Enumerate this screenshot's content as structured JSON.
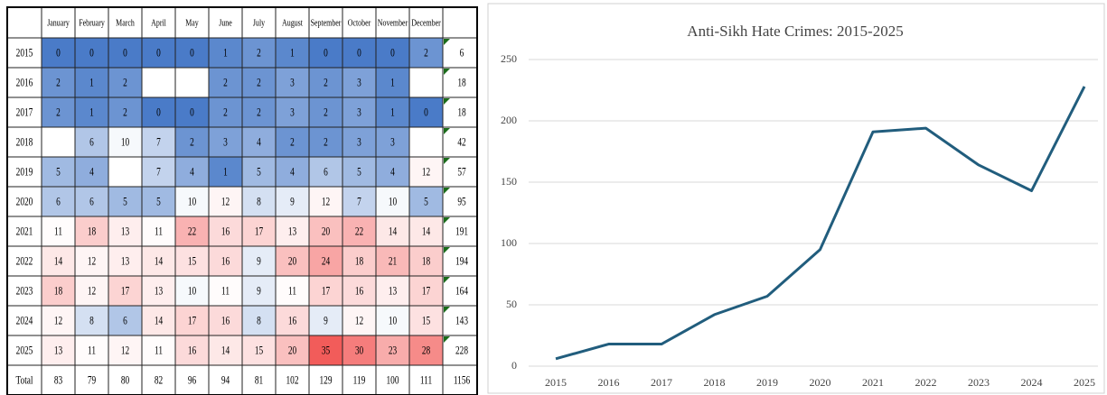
{
  "table": {
    "columns": [
      "January",
      "February",
      "March",
      "April",
      "May",
      "June",
      "July",
      "August",
      "September",
      "October",
      "November",
      "December"
    ],
    "rows": [
      {
        "label": "2015",
        "values": [
          0,
          0,
          0,
          0,
          0,
          1,
          2,
          1,
          0,
          0,
          0,
          2
        ],
        "total": 6
      },
      {
        "label": "2016",
        "values": [
          2,
          1,
          2,
          null,
          null,
          2,
          2,
          3,
          2,
          3,
          1,
          null
        ],
        "total": 18
      },
      {
        "label": "2017",
        "values": [
          2,
          1,
          2,
          0,
          0,
          2,
          2,
          3,
          2,
          3,
          1,
          0
        ],
        "total": 18
      },
      {
        "label": "2018",
        "values": [
          null,
          6,
          10,
          7,
          2,
          3,
          4,
          2,
          2,
          3,
          3,
          null
        ],
        "total": 42
      },
      {
        "label": "2019",
        "values": [
          5,
          4,
          null,
          7,
          4,
          1,
          5,
          4,
          6,
          5,
          4,
          12
        ],
        "total": 57
      },
      {
        "label": "2020",
        "values": [
          6,
          6,
          5,
          5,
          10,
          12,
          8,
          9,
          12,
          7,
          10,
          5
        ],
        "total": 95
      },
      {
        "label": "2021",
        "values": [
          11,
          18,
          13,
          11,
          22,
          16,
          17,
          13,
          20,
          22,
          14,
          14
        ],
        "total": 191
      },
      {
        "label": "2022",
        "values": [
          14,
          12,
          13,
          14,
          15,
          16,
          9,
          20,
          24,
          18,
          21,
          18
        ],
        "total": 194
      },
      {
        "label": "2023",
        "values": [
          18,
          12,
          17,
          13,
          10,
          11,
          9,
          11,
          17,
          16,
          13,
          17
        ],
        "total": 164
      },
      {
        "label": "2024",
        "values": [
          12,
          8,
          6,
          14,
          17,
          16,
          8,
          16,
          9,
          12,
          10,
          15
        ],
        "total": 143
      },
      {
        "label": "2025",
        "values": [
          13,
          11,
          12,
          11,
          16,
          14,
          15,
          20,
          35,
          30,
          23,
          28
        ],
        "total": 228
      }
    ],
    "total_row": {
      "label": "Total",
      "values": [
        83,
        79,
        80,
        82,
        96,
        94,
        81,
        102,
        129,
        119,
        100,
        111
      ],
      "total": 1156
    },
    "heatmap_colors": {
      "low": "#4a7bc8",
      "mid": "#ffffff",
      "high": "#f25c5a"
    }
  },
  "chart_data": {
    "type": "line",
    "title": "Anti-Sikh Hate Crimes: 2015-2025",
    "categories": [
      "2015",
      "2016",
      "2017",
      "2018",
      "2019",
      "2020",
      "2021",
      "2022",
      "2023",
      "2024",
      "2025"
    ],
    "values": [
      6,
      18,
      18,
      42,
      57,
      95,
      191,
      194,
      164,
      143,
      228
    ],
    "color": "#215d7d",
    "ylim": [
      0,
      250
    ],
    "yticks": [
      0,
      50,
      100,
      150,
      200,
      250
    ],
    "grid": true
  }
}
